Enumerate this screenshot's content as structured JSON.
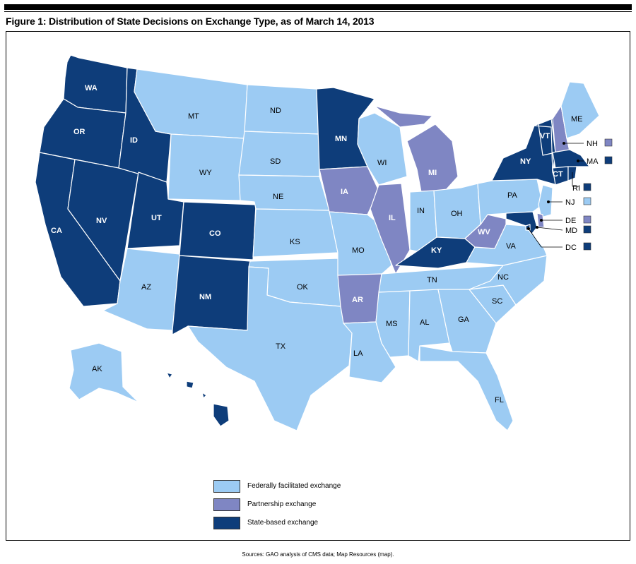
{
  "figure": {
    "title": "Figure 1: Distribution of State Decisions on Exchange Type, as of March 14, 2013",
    "source": "Sources: GAO analysis of CMS data; Map Resources (map)."
  },
  "colors": {
    "federal": "#9ccbf3",
    "partnership": "#7f86c3",
    "state": "#0e3d7a",
    "border": "#ffffff"
  },
  "legend": [
    {
      "key": "federal",
      "label": "Federally facilitated exchange"
    },
    {
      "key": "partnership",
      "label": "Partnership exchange"
    },
    {
      "key": "state",
      "label": "State-based exchange"
    }
  ],
  "states": {
    "WA": "state",
    "OR": "state",
    "CA": "state",
    "NV": "state",
    "ID": "state",
    "UT": "state",
    "MT": "federal",
    "WY": "federal",
    "CO": "state",
    "AZ": "federal",
    "NM": "state",
    "ND": "federal",
    "SD": "federal",
    "NE": "federal",
    "KS": "federal",
    "OK": "federal",
    "TX": "federal",
    "MN": "state",
    "IA": "partnership",
    "MO": "federal",
    "AR": "partnership",
    "LA": "federal",
    "WI": "federal",
    "IL": "partnership",
    "MI": "partnership",
    "IN": "federal",
    "OH": "federal",
    "KY": "state",
    "TN": "federal",
    "MS": "federal",
    "AL": "federal",
    "GA": "federal",
    "FL": "federal",
    "SC": "federal",
    "NC": "federal",
    "VA": "federal",
    "WV": "partnership",
    "PA": "federal",
    "NY": "state",
    "VT": "state",
    "NH": "partnership",
    "ME": "federal",
    "MA": "state",
    "CT": "state",
    "RI": "state",
    "NJ": "federal",
    "DE": "partnership",
    "MD": "state",
    "DC": "state",
    "AK": "federal",
    "HI": "state"
  },
  "callouts": [
    {
      "abbr": "NH",
      "key": "partnership"
    },
    {
      "abbr": "MA",
      "key": "state"
    },
    {
      "abbr": "RI",
      "key": "state"
    },
    {
      "abbr": "NJ",
      "key": "federal"
    },
    {
      "abbr": "DE",
      "key": "partnership"
    },
    {
      "abbr": "MD",
      "key": "state"
    },
    {
      "abbr": "DC",
      "key": "state"
    }
  ]
}
